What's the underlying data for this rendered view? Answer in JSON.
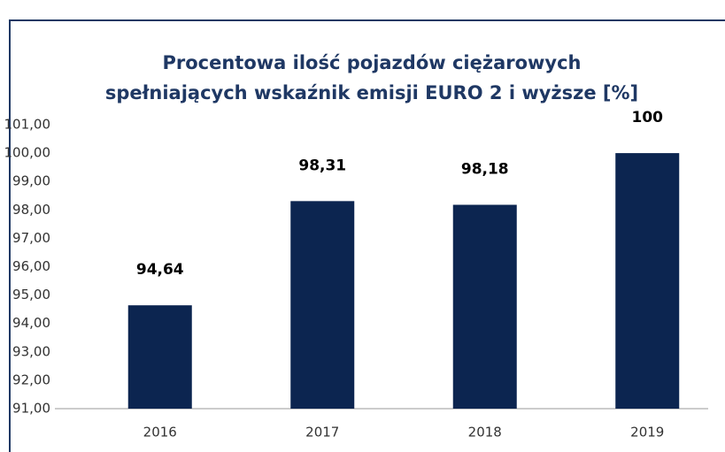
{
  "chart_data": {
    "type": "bar",
    "title": [
      "Procentowa ilość pojazdów ciężarowych",
      "spełniających wskaźnik emisji EURO 2 i wyższe  [%]"
    ],
    "categories": [
      "2016",
      "2017",
      "2018",
      "2019"
    ],
    "values": [
      94.64,
      98.31,
      98.18,
      100
    ],
    "value_labels": [
      "94,64",
      "98,31",
      "98,18",
      "100"
    ],
    "color": "#0c2550",
    "ylim": [
      91,
      101
    ],
    "yticks": [
      {
        "value": 91,
        "label": "91,00"
      },
      {
        "value": 92,
        "label": "92,00"
      },
      {
        "value": 93,
        "label": "93,00"
      },
      {
        "value": 94,
        "label": "94,00"
      },
      {
        "value": 95,
        "label": "95,00"
      },
      {
        "value": 96,
        "label": "96,00"
      },
      {
        "value": 97,
        "label": "97,00"
      },
      {
        "value": 98,
        "label": "98,00"
      },
      {
        "value": 99,
        "label": "99,00"
      },
      {
        "value": 100,
        "label": "100,00"
      },
      {
        "value": 101,
        "label": "101,00"
      }
    ],
    "grid": false
  }
}
